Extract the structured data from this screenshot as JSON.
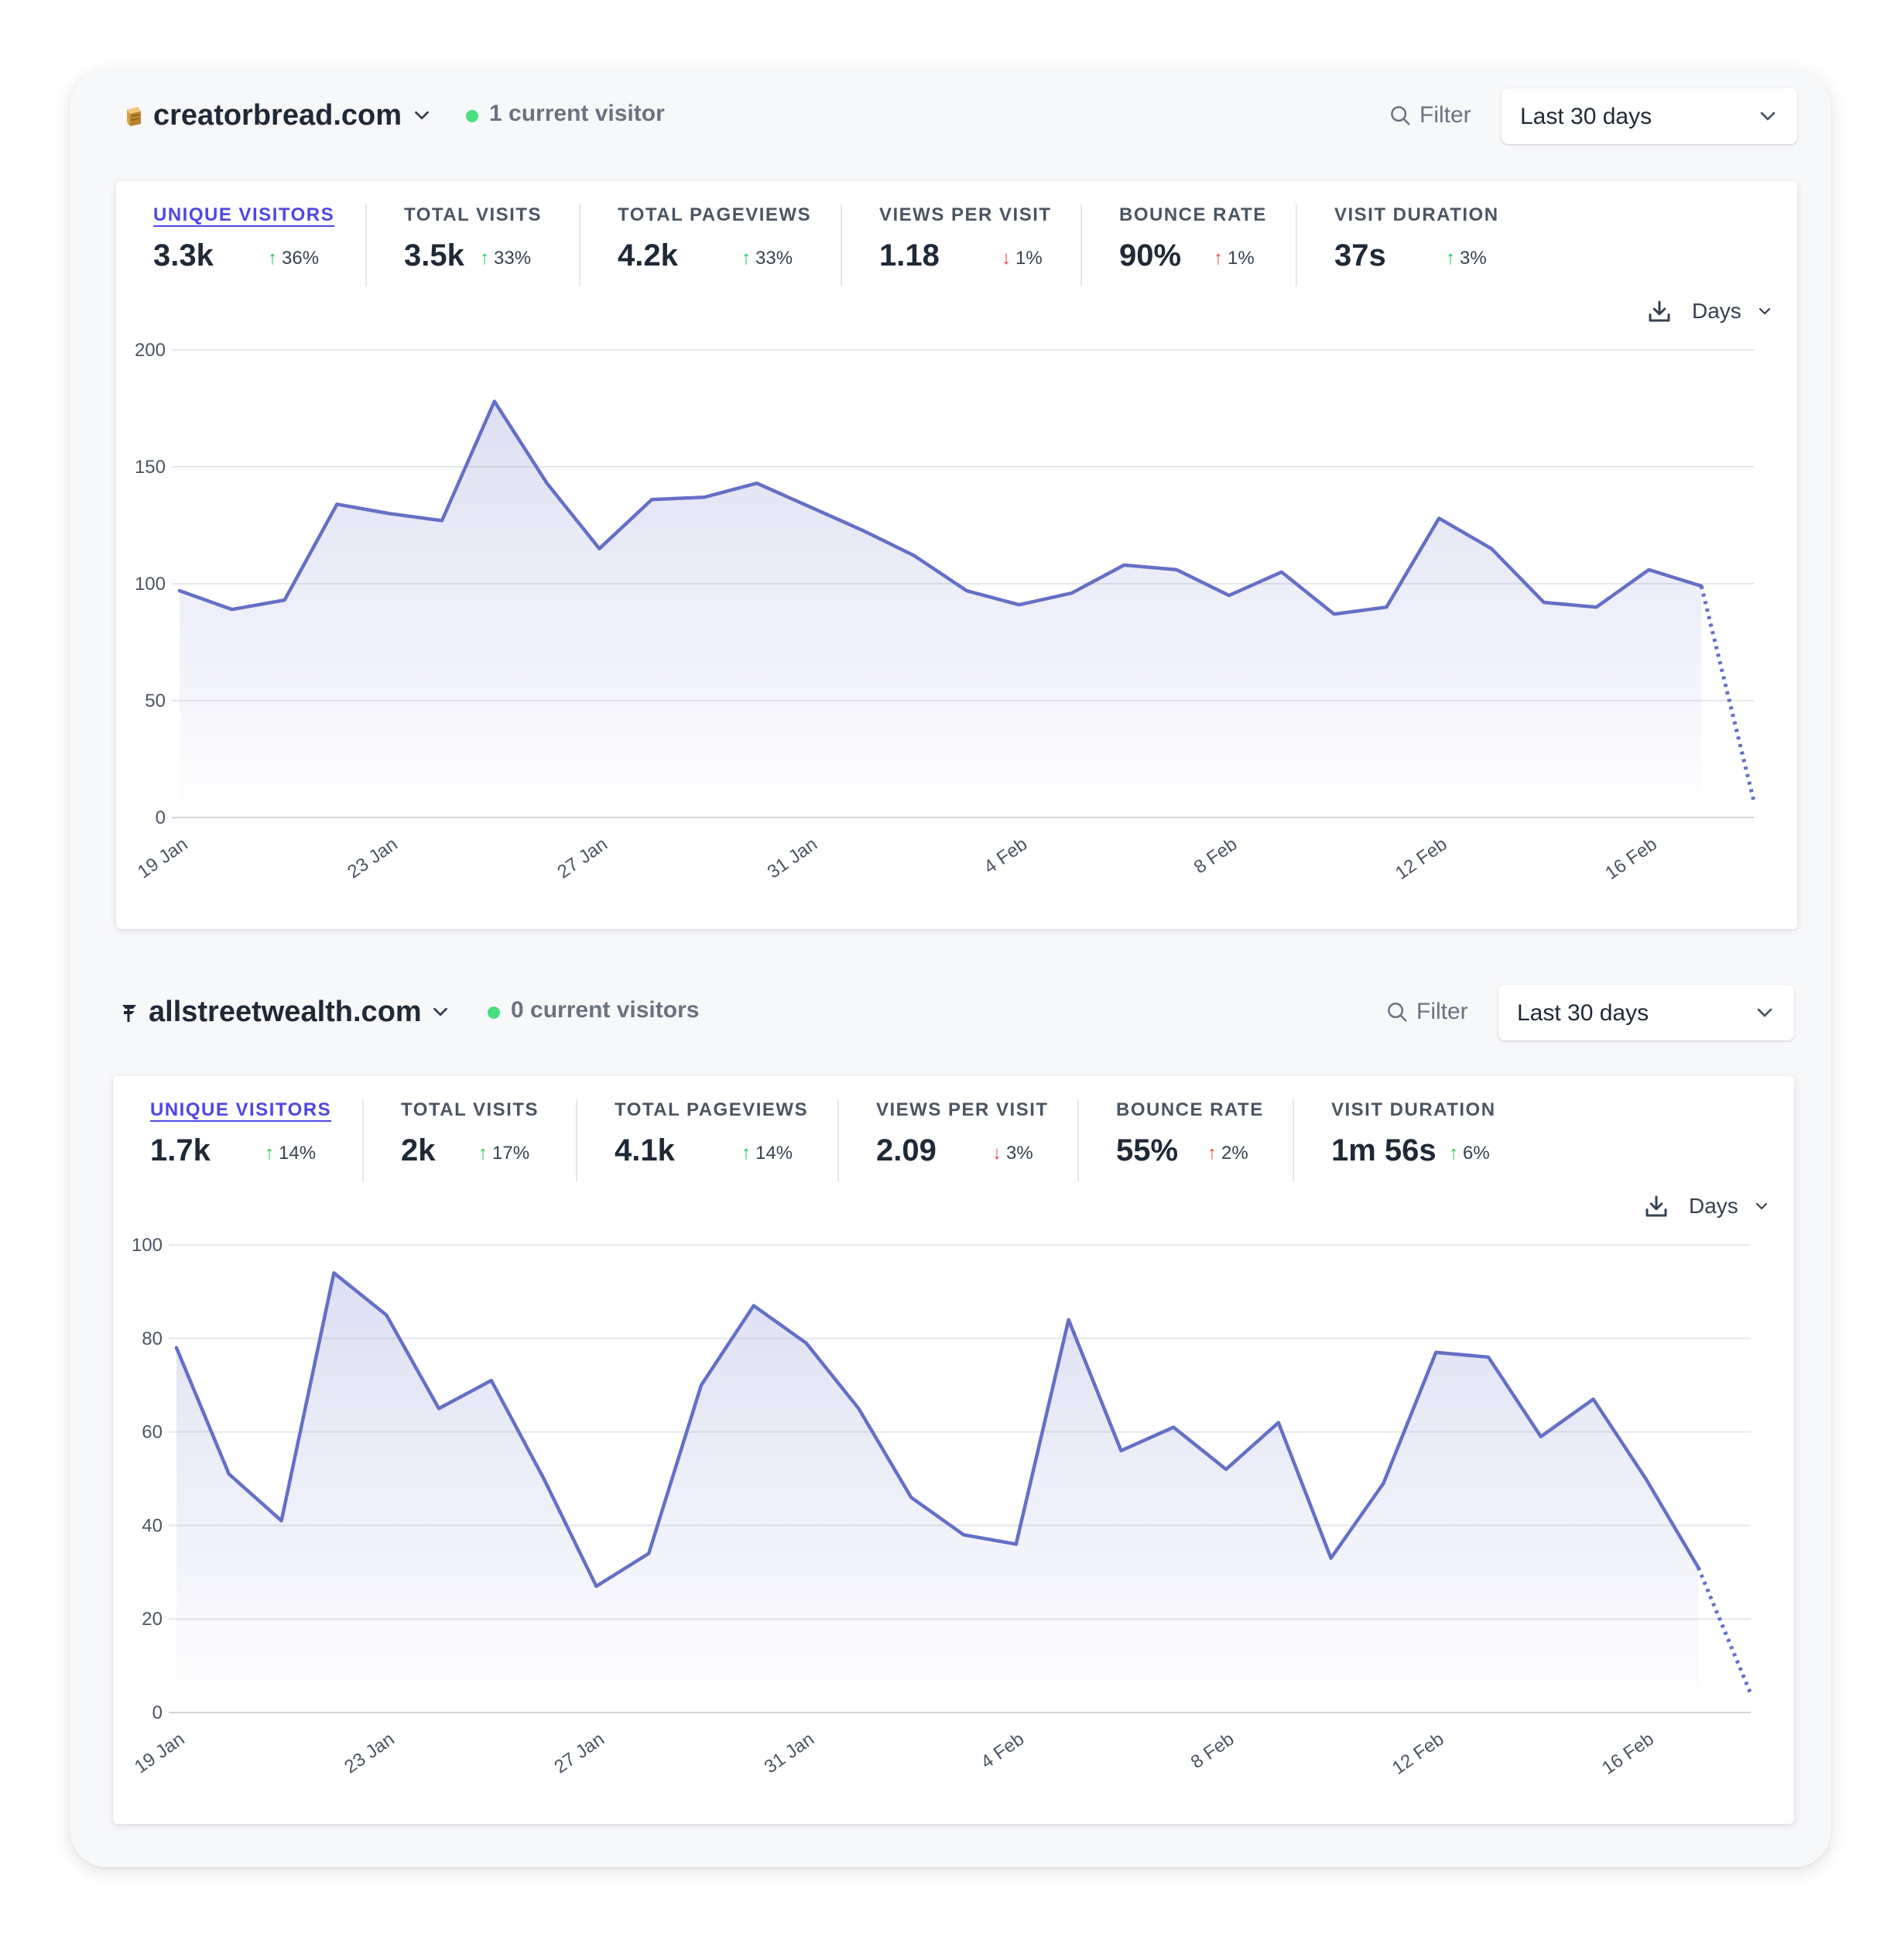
{
  "sites": [
    {
      "domain": "creatorbread.com",
      "favicon": "bread-favicon-icon",
      "current_visitors": "1 current visitor",
      "filter_label": "Filter",
      "period_label": "Last 30 days",
      "interval_label": "Days",
      "metrics": [
        {
          "label": "UNIQUE VISITORS",
          "value": "3.3k",
          "change": "36%",
          "direction": "up",
          "active": true
        },
        {
          "label": "TOTAL VISITS",
          "value": "3.5k",
          "change": "33%",
          "direction": "up",
          "active": false
        },
        {
          "label": "TOTAL PAGEVIEWS",
          "value": "4.2k",
          "change": "33%",
          "direction": "up",
          "active": false
        },
        {
          "label": "VIEWS PER VISIT",
          "value": "1.18",
          "change": "1%",
          "direction": "down",
          "active": false
        },
        {
          "label": "BOUNCE RATE",
          "value": "90%",
          "change": "1%",
          "direction": "up-bad",
          "active": false
        },
        {
          "label": "VISIT DURATION",
          "value": "37s",
          "change": "3%",
          "direction": "up",
          "active": false
        }
      ],
      "chart_data": {
        "type": "line",
        "series": [
          {
            "values": [
              97,
              89,
              93,
              134,
              130,
              127,
              178,
              143,
              115,
              136,
              137,
              143,
              133,
              123,
              112,
              97,
              91,
              96,
              108,
              106,
              95,
              105,
              87,
              90,
              128,
              115,
              92,
              90,
              106,
              99,
              7
            ]
          }
        ],
        "ylim": [
          0,
          200
        ],
        "yticks": [
          "0",
          "50",
          "100",
          "150",
          "200"
        ],
        "xtick_labels": [
          "19 Jan",
          "23 Jan",
          "27 Jan",
          "31 Jan",
          "4 Feb",
          "8 Feb",
          "12 Feb",
          "16 Feb"
        ],
        "incomplete_last_point": true,
        "line_color": "#6470c6"
      }
    },
    {
      "domain": "allstreetwealth.com",
      "favicon": "wealth-favicon-icon",
      "current_visitors": "0 current visitors",
      "filter_label": "Filter",
      "period_label": "Last 30 days",
      "interval_label": "Days",
      "metrics": [
        {
          "label": "UNIQUE VISITORS",
          "value": "1.7k",
          "change": "14%",
          "direction": "up",
          "active": true
        },
        {
          "label": "TOTAL VISITS",
          "value": "2k",
          "change": "17%",
          "direction": "up",
          "active": false
        },
        {
          "label": "TOTAL PAGEVIEWS",
          "value": "4.1k",
          "change": "14%",
          "direction": "up",
          "active": false
        },
        {
          "label": "VIEWS PER VISIT",
          "value": "2.09",
          "change": "3%",
          "direction": "down",
          "active": false
        },
        {
          "label": "BOUNCE RATE",
          "value": "55%",
          "change": "2%",
          "direction": "up-bad",
          "active": false
        },
        {
          "label": "VISIT DURATION",
          "value": "1m 56s",
          "change": "6%",
          "direction": "up",
          "active": false
        }
      ],
      "chart_data": {
        "type": "line",
        "series": [
          {
            "values": [
              78,
              51,
              41,
              94,
              85,
              65,
              71,
              50,
              27,
              34,
              70,
              87,
              79,
              65,
              46,
              38,
              36,
              84,
              56,
              61,
              52,
              62,
              33,
              49,
              77,
              76,
              59,
              67,
              50,
              31,
              4
            ]
          }
        ],
        "ylim": [
          0,
          100
        ],
        "yticks": [
          "0",
          "20",
          "40",
          "60",
          "80",
          "100"
        ],
        "xtick_labels": [
          "19 Jan",
          "23 Jan",
          "27 Jan",
          "31 Jan",
          "4 Feb",
          "8 Feb",
          "12 Feb",
          "16 Feb"
        ],
        "incomplete_last_point": true,
        "line_color": "#6470c6"
      }
    }
  ]
}
